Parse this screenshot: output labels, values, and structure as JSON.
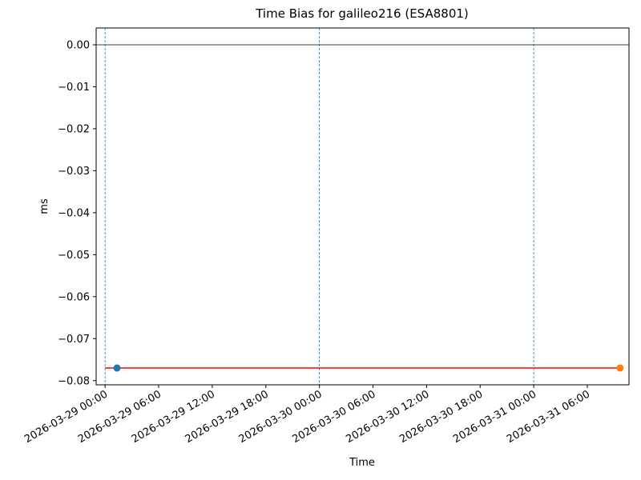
{
  "chart_data": {
    "type": "line",
    "title": "Time Bias for galileo216 (ESA8801)",
    "x_label": "Time",
    "y_label": "ms",
    "xlim": [
      "2026-03-28 23:00",
      "2026-03-31 10:40"
    ],
    "xticks": [
      "2026-03-29 00:00",
      "2026-03-29 06:00",
      "2026-03-29 12:00",
      "2026-03-29 18:00",
      "2026-03-30 00:00",
      "2026-03-30 06:00",
      "2026-03-30 12:00",
      "2026-03-30 18:00",
      "2026-03-31 00:00",
      "2026-03-31 06:00"
    ],
    "ylim": [
      -0.081,
      0.004
    ],
    "yticks": [
      {
        "value": 0,
        "label": "0.00"
      },
      {
        "value": -0.01,
        "label": "−0.01"
      },
      {
        "value": -0.02,
        "label": "−0.02"
      },
      {
        "value": -0.03,
        "label": "−0.03"
      },
      {
        "value": -0.04,
        "label": "−0.04"
      },
      {
        "value": -0.05,
        "label": "−0.05"
      },
      {
        "value": -0.06,
        "label": "−0.06"
      },
      {
        "value": -0.07,
        "label": "−0.07"
      },
      {
        "value": -0.08,
        "label": "−0.08"
      }
    ],
    "hline": 0,
    "vlines": [
      "2026-03-29 00:00",
      "2026-03-30 00:00",
      "2026-03-31 00:00"
    ],
    "vline_color": "#1f77b4",
    "series": [
      {
        "type": "line",
        "color": "#ff0000",
        "x": [
          "2026-03-29 00:00",
          "2026-03-31 09:40"
        ],
        "values": [
          -0.077,
          -0.077
        ]
      },
      {
        "type": "scatter",
        "color": "#1f77b4",
        "x": [
          "2026-03-29 01:20"
        ],
        "values": [
          -0.077
        ]
      },
      {
        "type": "scatter",
        "color": "#ff7f0e",
        "x": [
          "2026-03-31 09:40"
        ],
        "values": [
          -0.077
        ]
      }
    ]
  }
}
